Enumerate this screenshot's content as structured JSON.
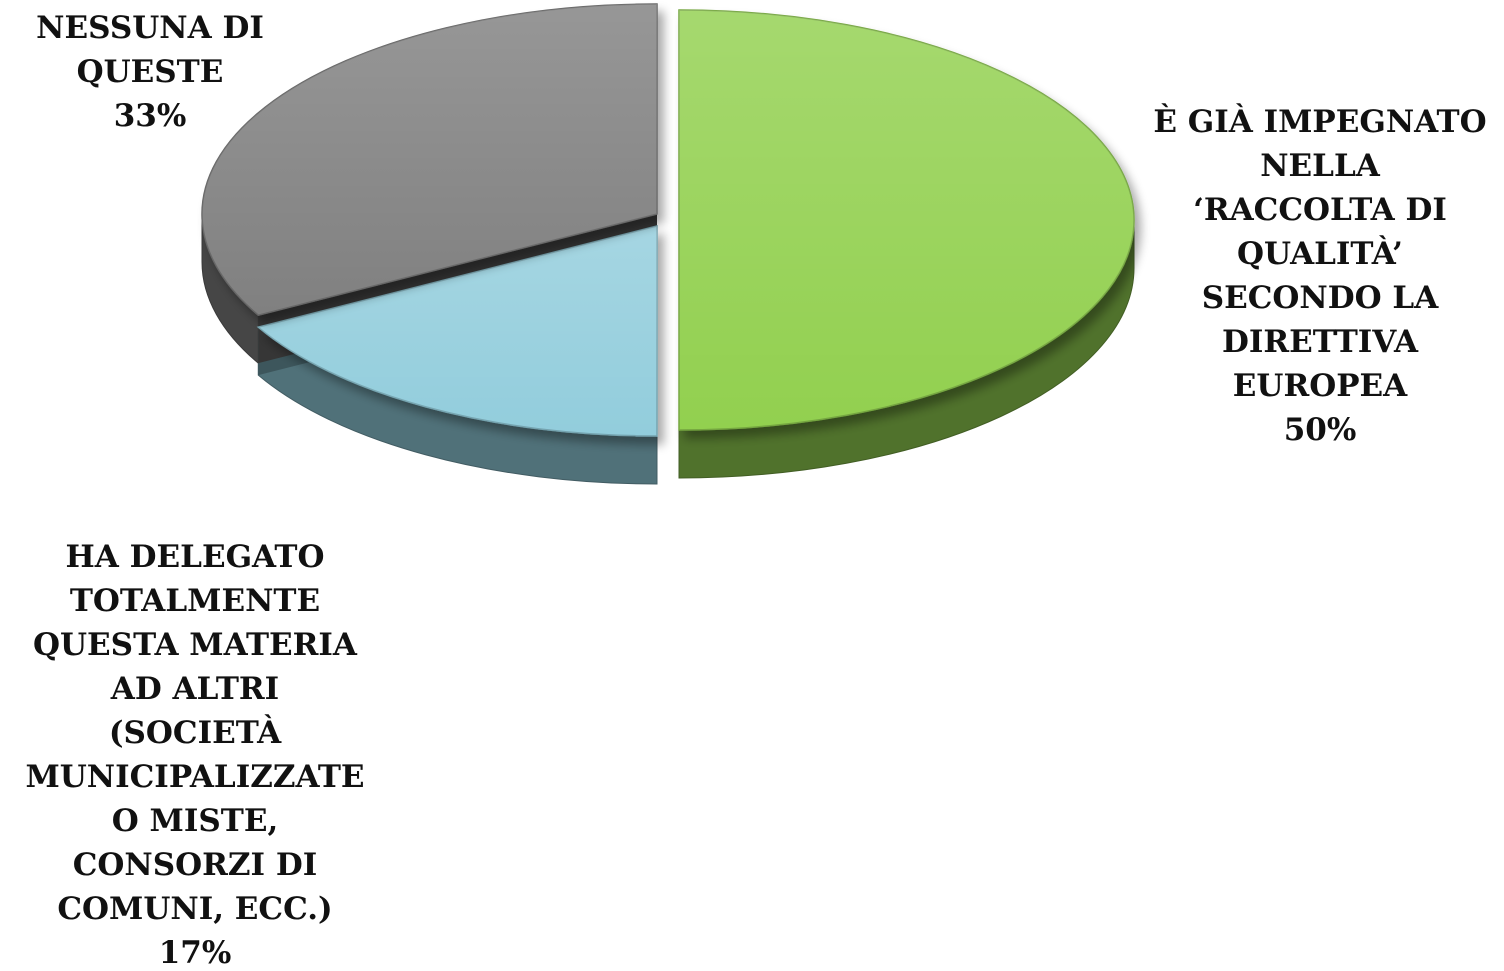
{
  "chart_data": {
    "type": "pie",
    "style": "3d-exploded",
    "slices": [
      {
        "label_lines": [
          "È GIÀ IMPEGNATO",
          "NELLA",
          "‘RACCOLTA DI",
          "QUALITÀ’",
          "SECONDO LA",
          "DIRETTIVA",
          "EUROPEA"
        ],
        "value": 50,
        "value_label": "50%",
        "color": "#92D050"
      },
      {
        "label_lines": [
          "HA DELEGATO",
          "TOTALMENTE",
          "QUESTA MATERIA",
          "AD ALTRI",
          "(SOCIETÀ",
          "MUNICIPALIZZATE",
          "O MISTE,",
          "CONSORZI DI",
          "COMUNI, ECC.)"
        ],
        "value": 17,
        "value_label": "17%",
        "color": "#92CDDC"
      },
      {
        "label_lines": [
          "NESSUNA DI",
          "QUESTE"
        ],
        "value": 33,
        "value_label": "33%",
        "color": "#808080"
      }
    ],
    "legend": "none",
    "data_labels": "outside"
  }
}
